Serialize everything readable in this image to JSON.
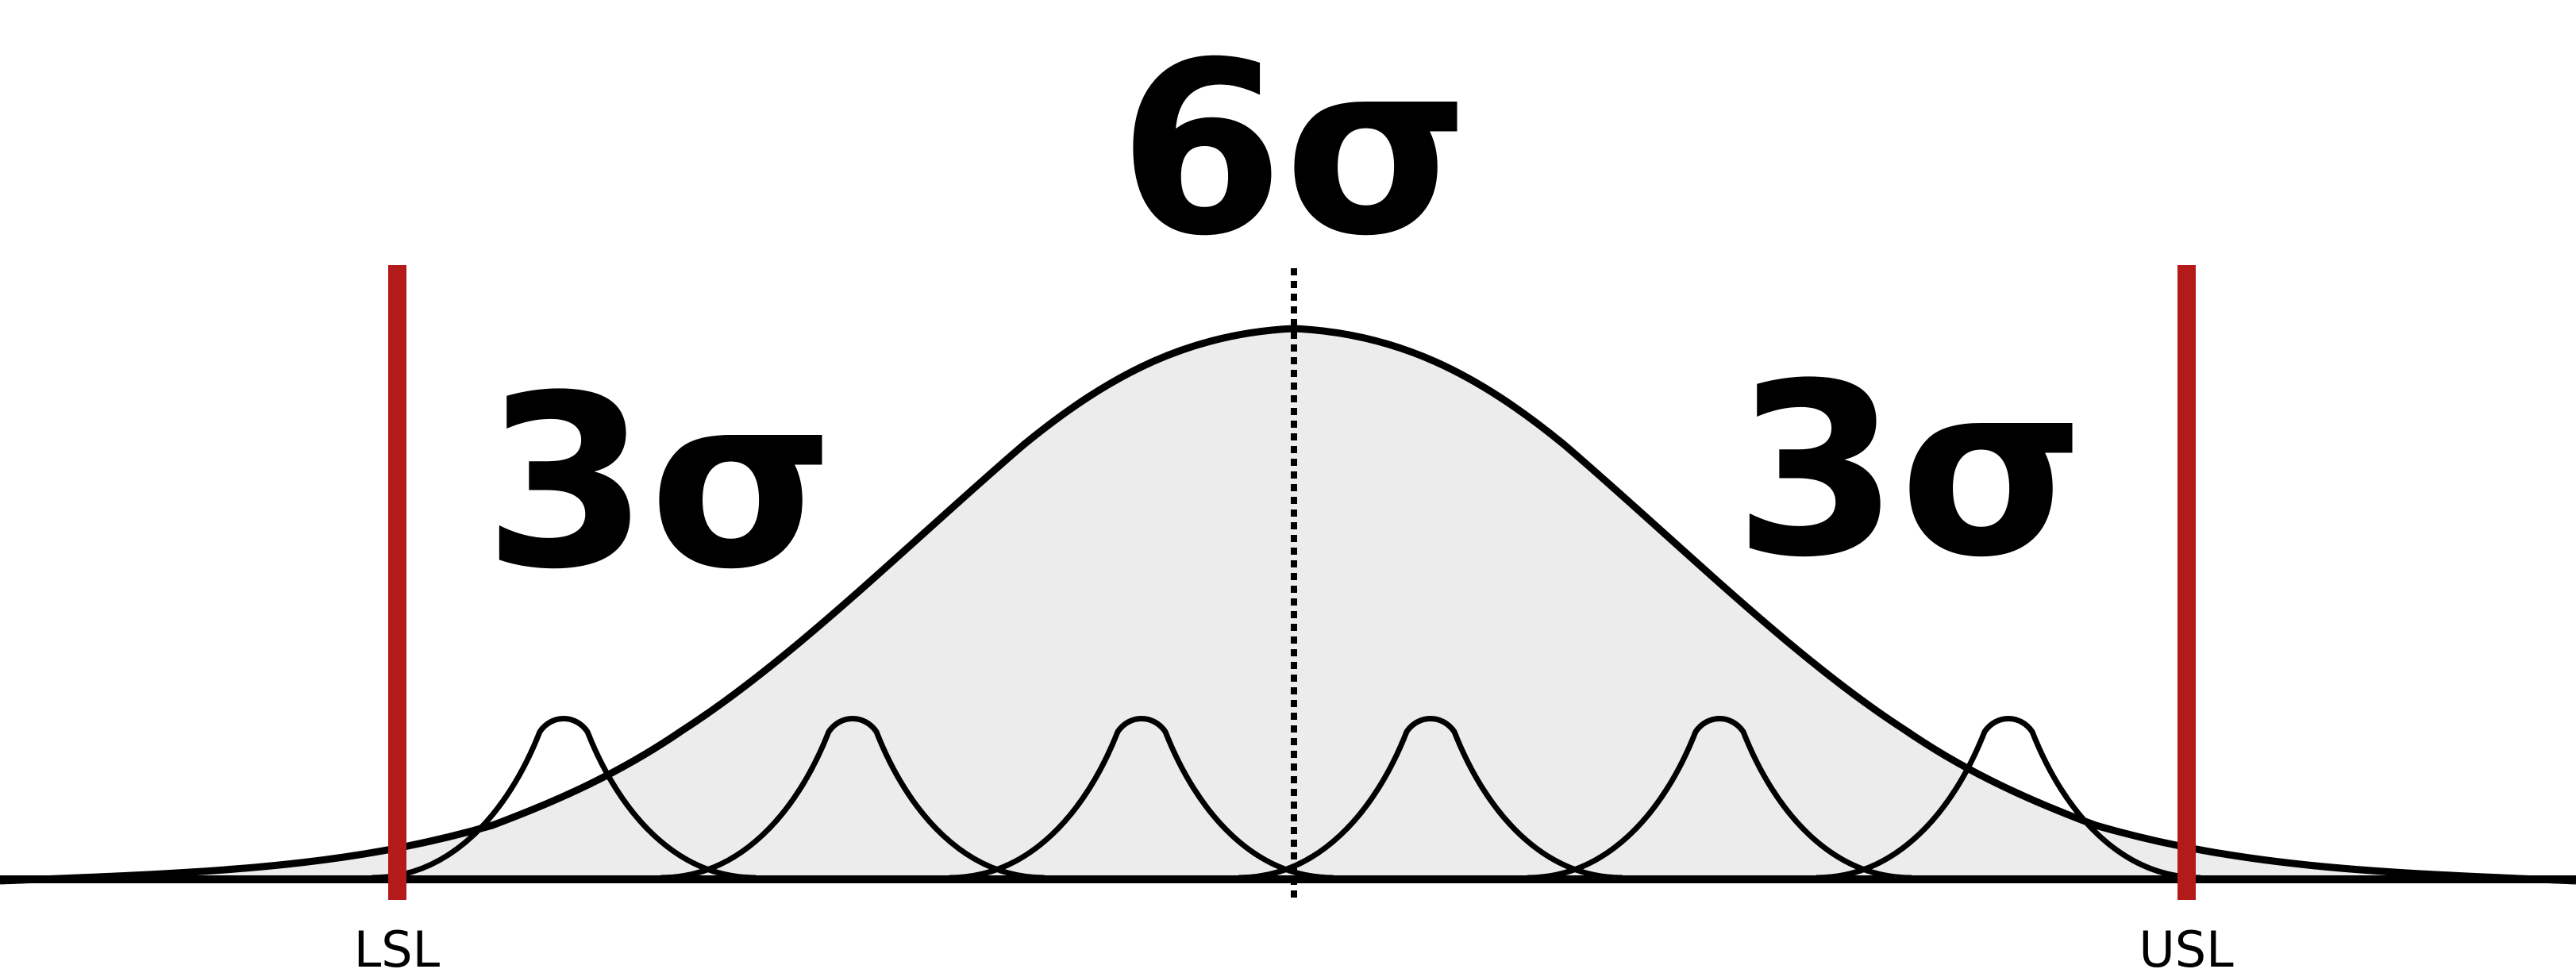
{
  "title": "6σ",
  "left_region_label": "3σ",
  "right_region_label": "3σ",
  "lower_limit_label": "LSL",
  "upper_limit_label": "USL",
  "colors": {
    "curve_fill": "#ececec",
    "curve_stroke": "#000000",
    "limit_line": "#b51a1a",
    "background": "#ffffff"
  },
  "small_distribution_count": 6
}
